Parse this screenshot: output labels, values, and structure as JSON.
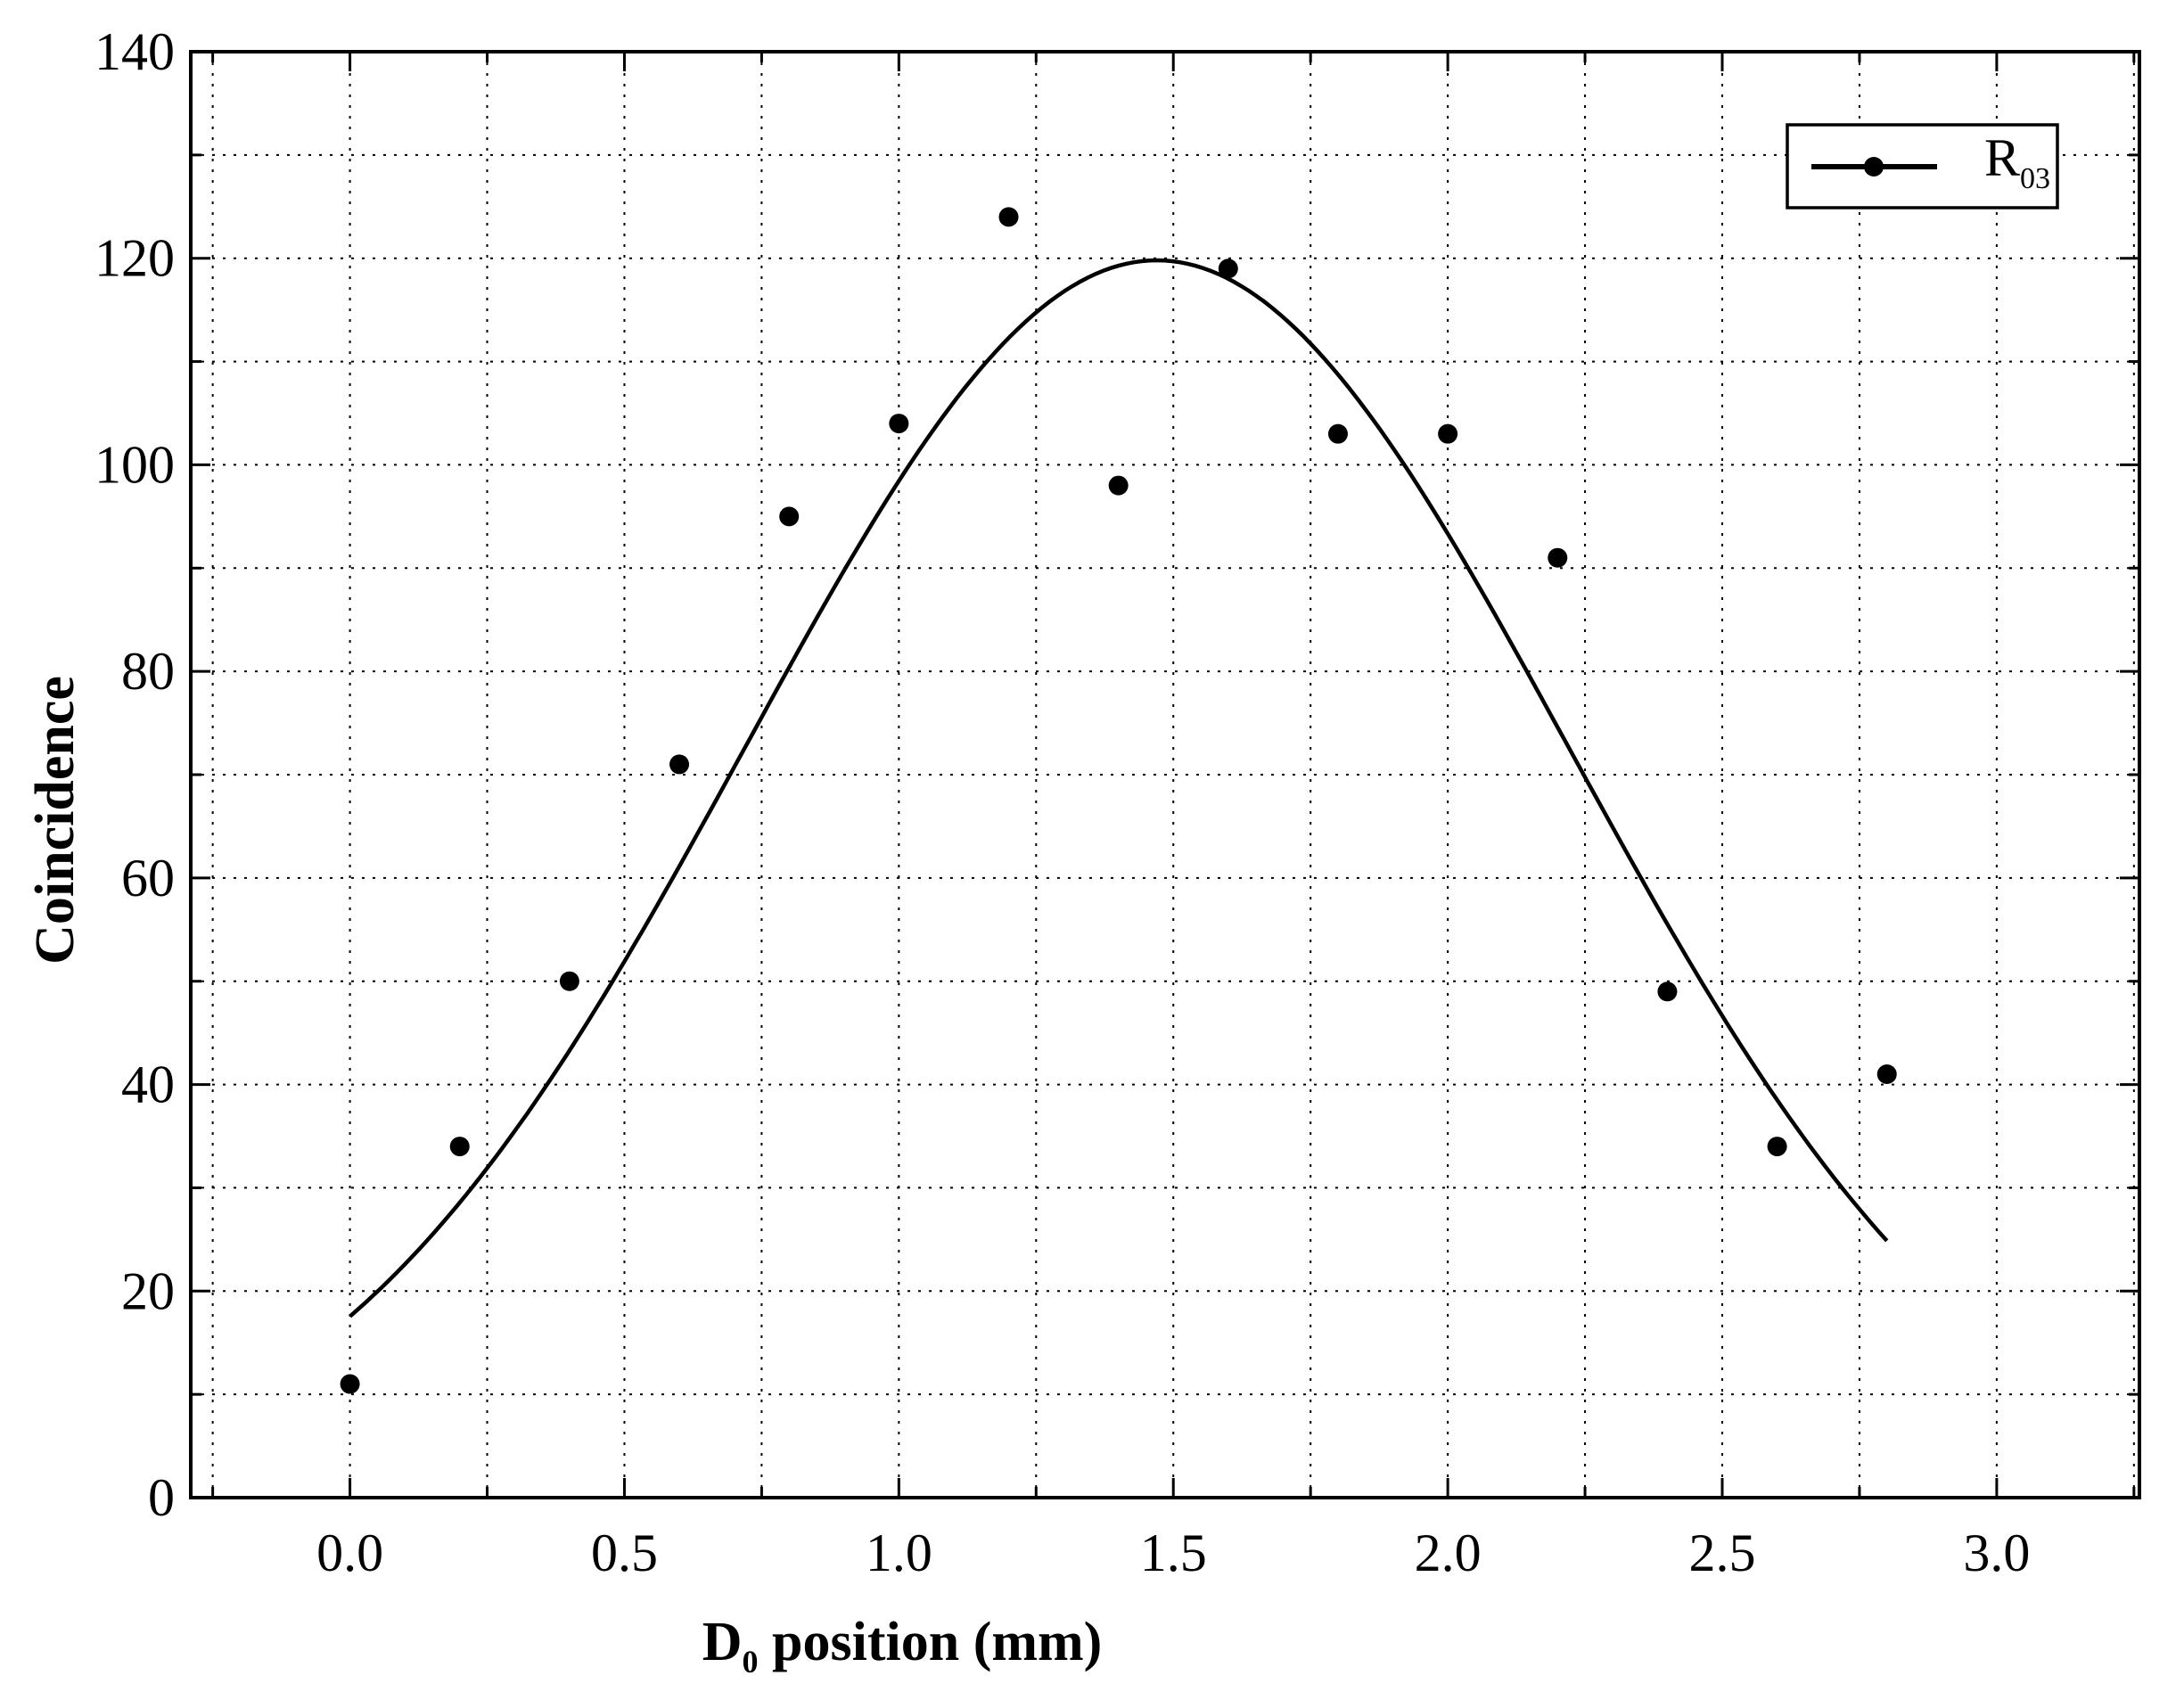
{
  "chart_data": {
    "type": "scatter",
    "xlabel": "D",
    "xlabel_subscript": "0",
    "xlabel_rest": " position (mm)",
    "ylabel": "Coincidence",
    "xlim": [
      -0.29,
      3.26
    ],
    "ylim": [
      0,
      140
    ],
    "xticks": [
      0.0,
      0.5,
      1.0,
      1.5,
      2.0,
      2.5,
      3.0
    ],
    "xtick_labels": [
      "0.0",
      "0.5",
      "1.0",
      "1.5",
      "2.0",
      "2.5",
      "3.0"
    ],
    "xminor_step": 0.25,
    "yticks": [
      0,
      20,
      40,
      60,
      80,
      100,
      120,
      140
    ],
    "ytick_labels": [
      "0",
      "20",
      "40",
      "60",
      "80",
      "100",
      "120",
      "140"
    ],
    "yminor_step": 10,
    "grid": true,
    "legend_position": "top-right",
    "series": [
      {
        "name": "R",
        "name_subscript": "03",
        "marker": "circle",
        "color": "#000000",
        "x": [
          0.0,
          0.2,
          0.4,
          0.6,
          0.8,
          1.0,
          1.2,
          1.4,
          1.6,
          1.8,
          2.0,
          2.2,
          2.4,
          2.6,
          2.8
        ],
        "y": [
          11,
          34,
          50,
          71,
          95,
          104,
          124,
          98,
          119,
          103,
          103,
          91,
          49,
          34,
          41
        ]
      }
    ],
    "fit_curve": {
      "type": "gaussian",
      "amplitude": 119.8,
      "center": 1.47,
      "sigma": 0.75,
      "x_range": [
        0.0,
        2.8
      ],
      "color": "#000000"
    }
  }
}
